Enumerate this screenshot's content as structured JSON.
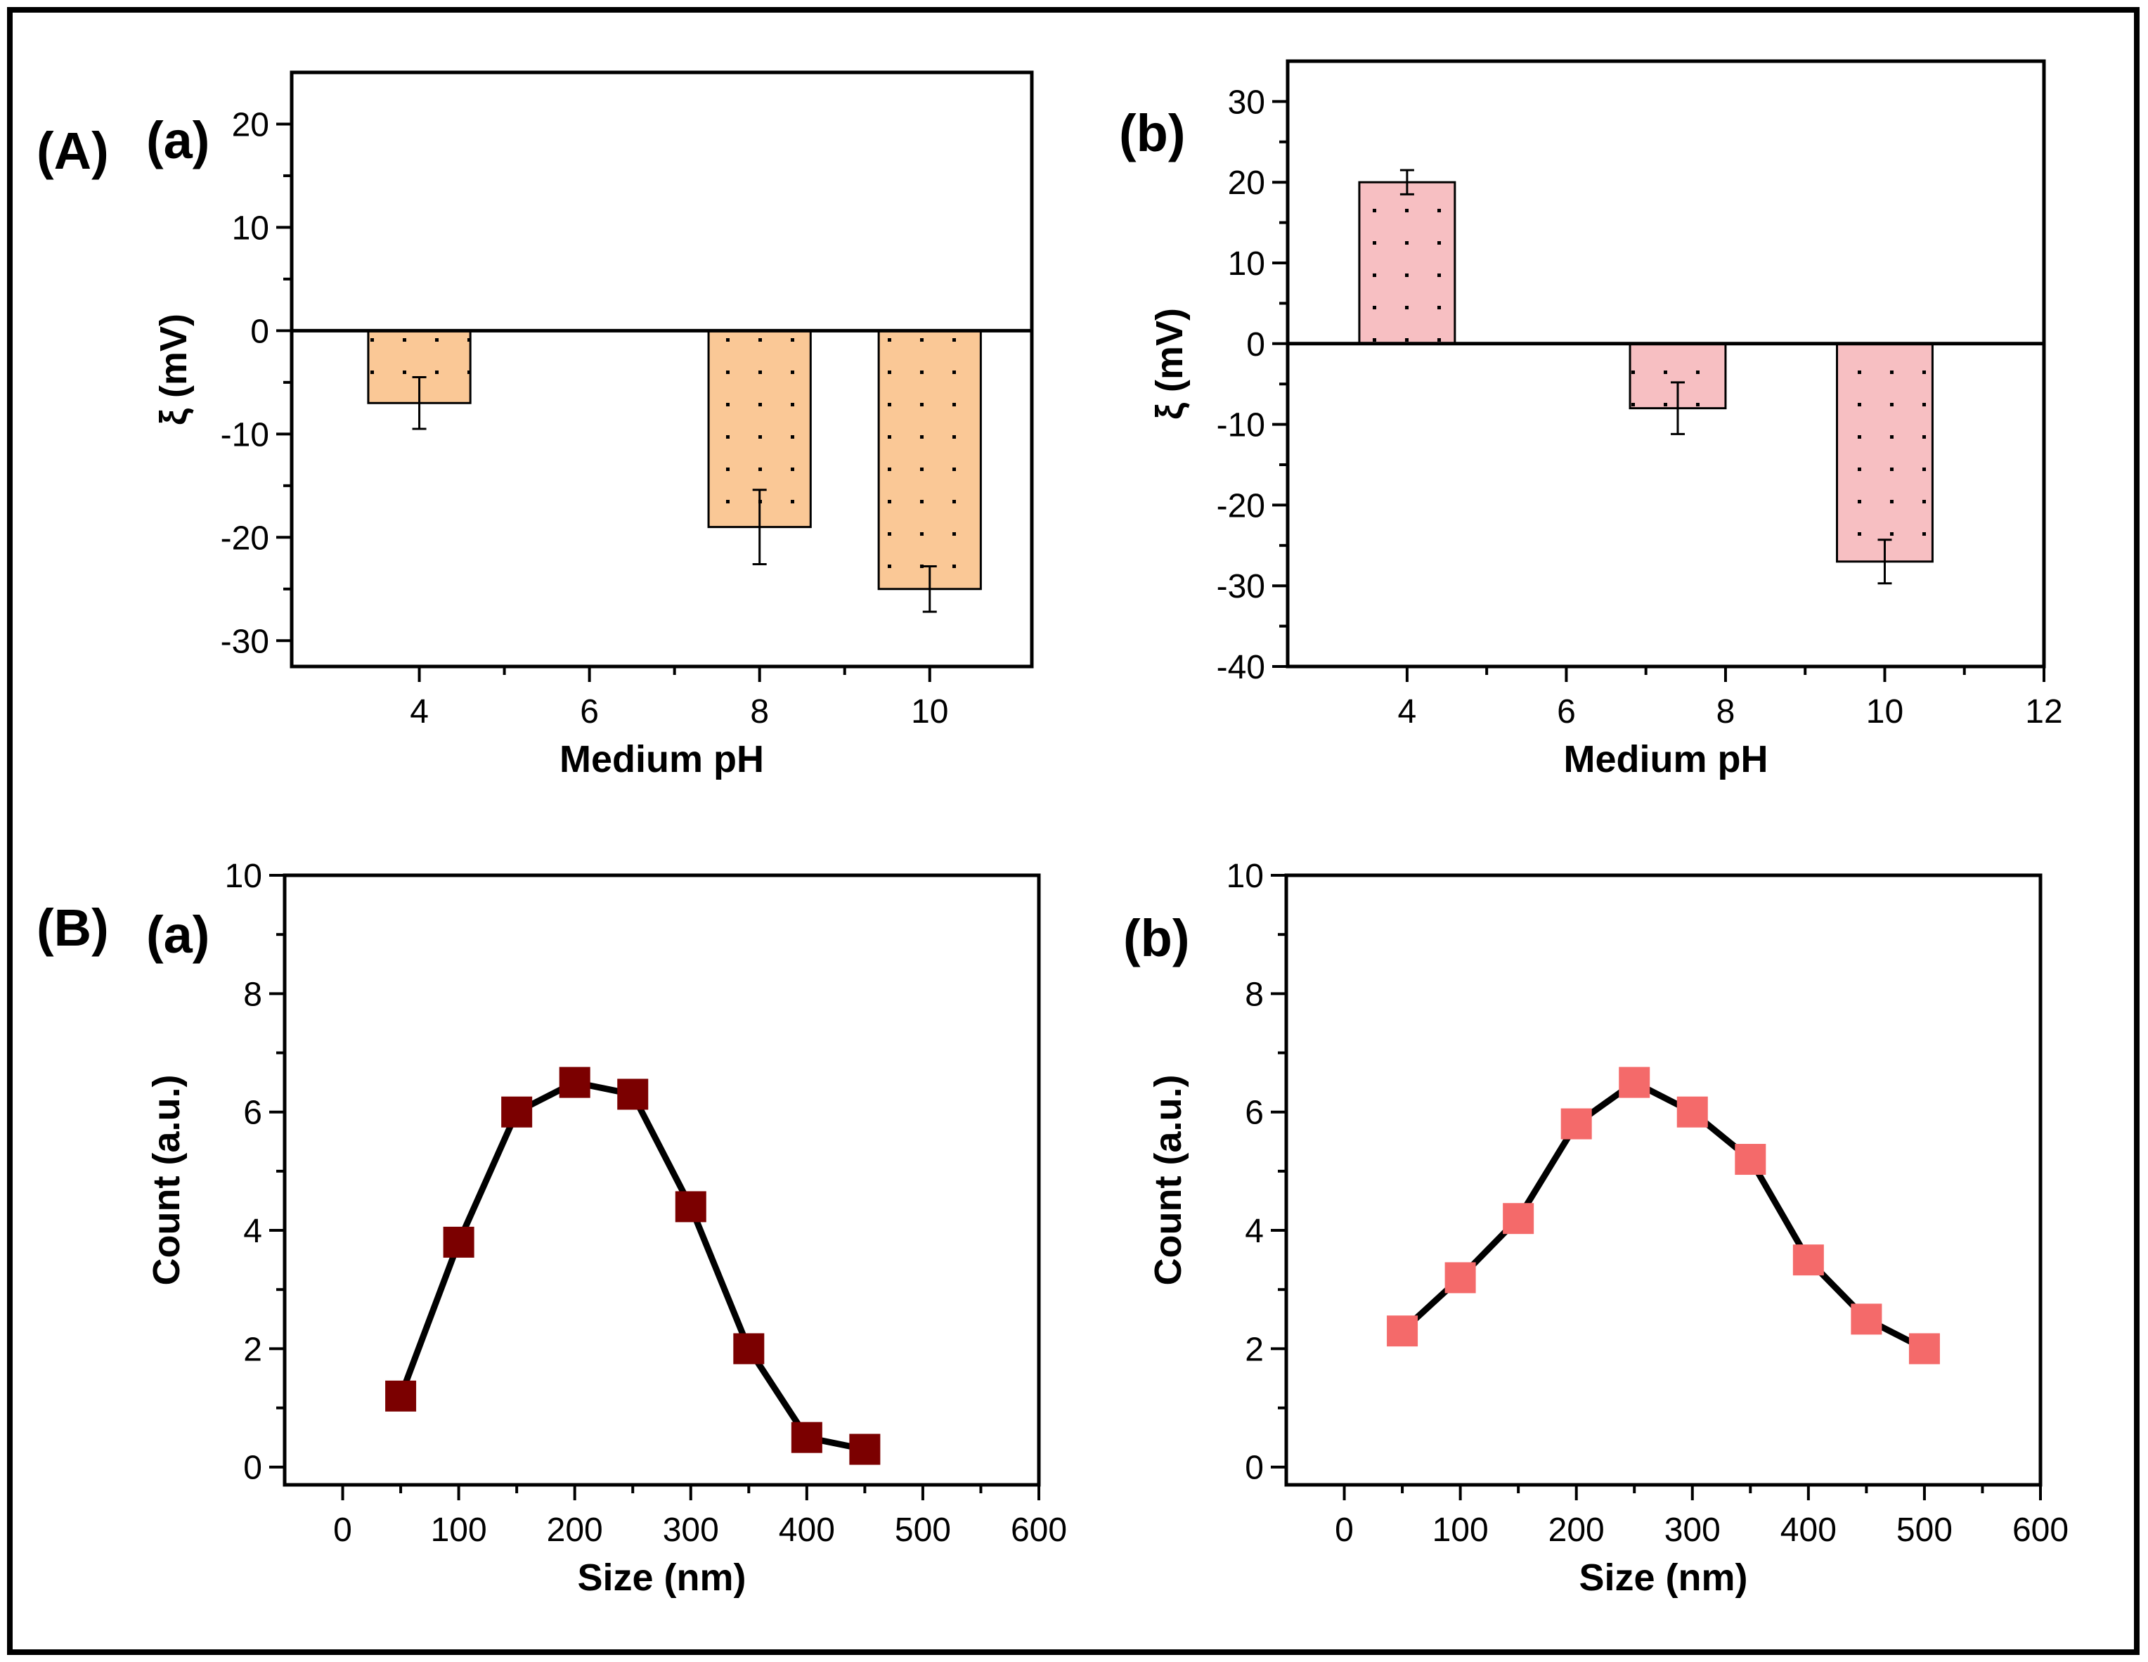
{
  "figure": {
    "group_labels": [
      "(A)",
      "(B)"
    ],
    "colors": {
      "frame": "#000000",
      "bar_orange": "#FAC896",
      "bar_pink": "#F7BFC2",
      "marker_dark_red": "#7B0000",
      "marker_light_red": "#F46A6A"
    }
  },
  "chart_data": [
    {
      "id": "A_a",
      "panel_label": "(a)",
      "type": "bar",
      "xlabel": "Medium pH",
      "ylabel": "ξ (mV)",
      "x": [
        4,
        8,
        10
      ],
      "values": [
        -7,
        -19,
        -25
      ],
      "errors": [
        2.5,
        3.6,
        2.2
      ],
      "xlim": [
        2.5,
        11.2
      ],
      "ylim": [
        -32.5,
        25
      ],
      "xticks": [
        4,
        6,
        8,
        10
      ],
      "yticks": [
        -30,
        -20,
        -10,
        0,
        10,
        20
      ],
      "bar_width": 1.2,
      "pattern": "dots",
      "color": "#FAC896"
    },
    {
      "id": "A_b",
      "panel_label": "(b)",
      "type": "bar",
      "xlabel": "Medium pH",
      "ylabel": "ξ (mV)",
      "x": [
        4,
        7.4,
        10
      ],
      "values": [
        20,
        -8,
        -27
      ],
      "errors": [
        1.5,
        3.2,
        2.7
      ],
      "xlim": [
        2.5,
        12
      ],
      "ylim": [
        -40,
        35
      ],
      "xticks": [
        4,
        6,
        8,
        10,
        12
      ],
      "yticks": [
        -40,
        -30,
        -20,
        -10,
        0,
        10,
        20,
        30
      ],
      "bar_width": 1.2,
      "pattern": "dots",
      "color": "#F7BFC2"
    },
    {
      "id": "B_a",
      "panel_label": "(a)",
      "type": "line",
      "xlabel": "Size (nm)",
      "ylabel": "Count (a.u.)",
      "x": [
        50,
        100,
        150,
        200,
        250,
        300,
        350,
        400,
        450
      ],
      "y": [
        1.2,
        3.8,
        6.0,
        6.5,
        6.3,
        4.4,
        2.0,
        0.5,
        0.3
      ],
      "xlim": [
        -50,
        600
      ],
      "ylim": [
        -0.3,
        10
      ],
      "xticks": [
        0,
        100,
        200,
        300,
        400,
        500,
        600
      ],
      "yticks": [
        0,
        2,
        4,
        6,
        8,
        10
      ],
      "marker": "square",
      "color": "#7B0000"
    },
    {
      "id": "B_b",
      "panel_label": "(b)",
      "type": "line",
      "xlabel": "Size (nm)",
      "ylabel": "Count (a.u.)",
      "x": [
        50,
        100,
        150,
        200,
        250,
        300,
        350,
        400,
        450,
        500
      ],
      "y": [
        2.3,
        3.2,
        4.2,
        5.8,
        6.5,
        6.0,
        5.2,
        3.5,
        2.5,
        2.0
      ],
      "xlim": [
        -50,
        600
      ],
      "ylim": [
        -0.3,
        10
      ],
      "xticks": [
        0,
        100,
        200,
        300,
        400,
        500,
        600
      ],
      "yticks": [
        0,
        2,
        4,
        6,
        8,
        10
      ],
      "marker": "square",
      "color": "#F46A6A"
    }
  ]
}
